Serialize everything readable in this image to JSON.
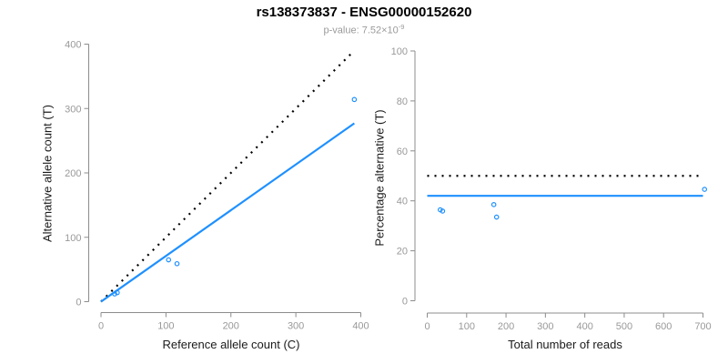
{
  "header": {
    "title": "rs138373837 - ENSG00000152620",
    "p_prefix": "p-value: 7.52×10",
    "p_exponent": "-9"
  },
  "colors": {
    "accent_blue": "#1E90FF",
    "dotted_black": "#000000",
    "axis_gray": "#8C8C8C",
    "tick_label_gray": "#999999",
    "label_black": "#1A1A1A"
  },
  "chart_data": [
    {
      "type": "scatter",
      "name": "allele-counts",
      "xlabel": "Reference allele count (C)",
      "ylabel": "Alternative allele count (T)",
      "xlim": [
        0,
        400
      ],
      "ylim": [
        0,
        400
      ],
      "xticks": [
        0,
        100,
        200,
        300,
        400
      ],
      "yticks": [
        0,
        100,
        200,
        300,
        400
      ],
      "grid": false,
      "points": [
        [
          21,
          12
        ],
        [
          25,
          14
        ],
        [
          104,
          65
        ],
        [
          117,
          59
        ],
        [
          390,
          314
        ]
      ],
      "lines": [
        {
          "name": "identity-line",
          "x1": 0,
          "y1": 0,
          "x2": 390,
          "y2": 390,
          "style": "dotted",
          "color": "#000000"
        },
        {
          "name": "fit-line",
          "x1": 0,
          "y1": 0,
          "x2": 390,
          "y2": 277,
          "style": "solid",
          "color": "#1E90FF"
        }
      ]
    },
    {
      "type": "scatter",
      "name": "percentage-vs-reads",
      "xlabel": "Total number of reads",
      "ylabel": "Percentage alternative (T)",
      "xlim": [
        0,
        700
      ],
      "ylim": [
        0,
        100
      ],
      "xticks": [
        0,
        100,
        200,
        300,
        400,
        500,
        600,
        700
      ],
      "yticks": [
        0,
        20,
        40,
        60,
        80,
        100
      ],
      "grid": false,
      "points": [
        [
          33,
          36.4
        ],
        [
          39,
          35.9
        ],
        [
          169,
          38.5
        ],
        [
          176,
          33.5
        ],
        [
          704,
          44.6
        ]
      ],
      "lines": [
        {
          "name": "expected-50-line",
          "x1": 0,
          "y1": 50,
          "x2": 700,
          "y2": 50,
          "style": "dotted",
          "color": "#000000"
        },
        {
          "name": "mean-percentage-line",
          "x1": 0,
          "y1": 42,
          "x2": 700,
          "y2": 42,
          "style": "solid",
          "color": "#1E90FF"
        }
      ]
    }
  ]
}
